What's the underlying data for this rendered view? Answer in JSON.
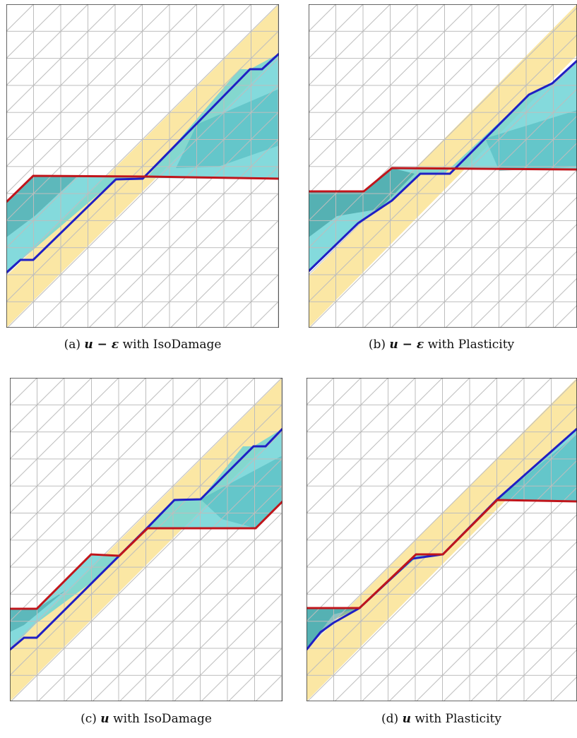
{
  "colors": {
    "band": "#fbe7a4",
    "crack_fill": "#6fd3d6",
    "crack_dark": "#2f8f92",
    "upper_boundary": "#1f1fc4",
    "lower_boundary": "#c0151b",
    "mesh": "#bdbdbd"
  },
  "panels": [
    {
      "id": "a",
      "label": "(a)",
      "formulation": "u − ε",
      "model_text": "with IsoDamage"
    },
    {
      "id": "b",
      "label": "(b)",
      "formulation": "u − ε",
      "model_text": "with Plasticity"
    },
    {
      "id": "c",
      "label": "(c)",
      "formulation": "u",
      "model_text": "with IsoDamage"
    },
    {
      "id": "d",
      "label": "(d)",
      "formulation": "u",
      "model_text": "with Plasticity"
    }
  ]
}
